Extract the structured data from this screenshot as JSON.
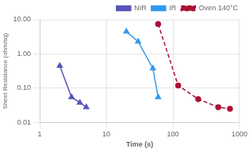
{
  "chart_data": {
    "type": "line",
    "x_label": "Time (s)",
    "y_label": "Sheet Resistance (ohm/sq)",
    "log": true,
    "xlim": [
      1,
      1000
    ],
    "ylim": [
      0.01,
      10.0
    ],
    "xticks": [
      1,
      10,
      100,
      1000
    ],
    "yticks": [
      0.01,
      {
        "value": 0.1,
        "label": "0.10"
      },
      {
        "value": 1,
        "label": "1.00"
      },
      {
        "value": 10,
        "label": "10.00"
      }
    ],
    "grid": true,
    "legend": "upper right",
    "series": [
      {
        "name": "NIR",
        "color": "#5555BB",
        "marker": "triangle",
        "line_style": "solid",
        "x": [
          2.0,
          3.0,
          4.0,
          5.0
        ],
        "values": [
          0.45,
          0.055,
          0.038,
          0.028
        ]
      },
      {
        "name": "IR",
        "color": "#3399EE",
        "marker": "triangle",
        "line_style": "solid",
        "x": [
          20,
          30,
          50,
          60
        ],
        "values": [
          4.5,
          2.3,
          0.38,
          0.055
        ]
      },
      {
        "name": "Oven 140°C",
        "color": "#AA1133",
        "marker": "circle",
        "line_style": "dashed",
        "x": [
          60,
          120,
          240,
          480,
          720
        ],
        "values": [
          7.5,
          0.12,
          0.048,
          0.028,
          0.025
        ]
      }
    ]
  }
}
